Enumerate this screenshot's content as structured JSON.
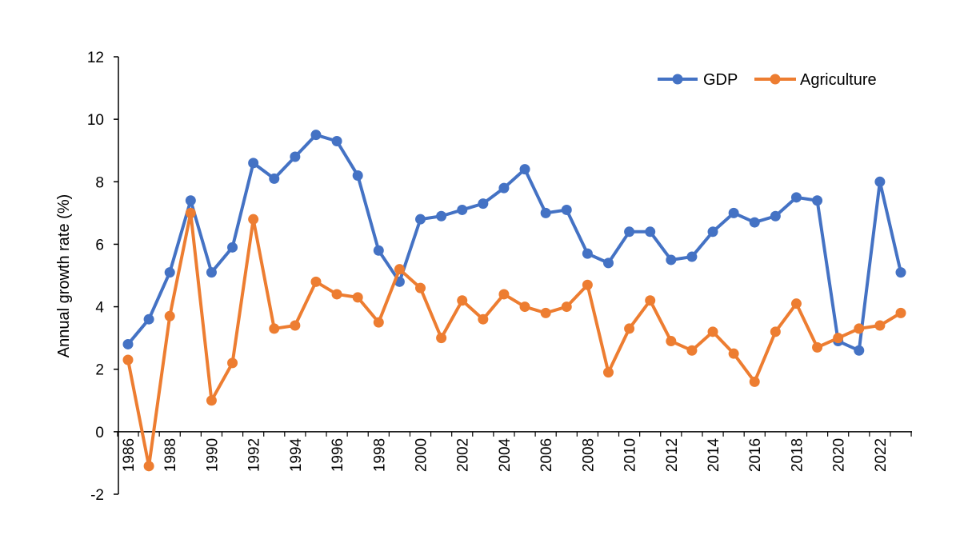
{
  "chart_data": {
    "type": "line",
    "title": "",
    "xlabel": "",
    "ylabel": "Annual growth rate (%)",
    "ylim": [
      -2,
      12
    ],
    "yticks": [
      -2,
      0,
      2,
      4,
      6,
      8,
      10,
      12
    ],
    "x": [
      1986,
      1987,
      1988,
      1989,
      1990,
      1991,
      1992,
      1993,
      1994,
      1995,
      1996,
      1997,
      1998,
      1999,
      2000,
      2001,
      2002,
      2003,
      2004,
      2005,
      2006,
      2007,
      2008,
      2009,
      2010,
      2011,
      2012,
      2013,
      2014,
      2015,
      2016,
      2017,
      2018,
      2019,
      2020,
      2021,
      2022,
      2023
    ],
    "xtick_labels": [
      1986,
      1988,
      1990,
      1992,
      1994,
      1996,
      1998,
      2000,
      2002,
      2004,
      2006,
      2008,
      2010,
      2012,
      2014,
      2016,
      2018,
      2020,
      2022
    ],
    "grid": false,
    "legend_position": "top-right",
    "series": [
      {
        "name": "GDP",
        "color": "#4472C4",
        "values": [
          2.8,
          3.6,
          5.1,
          7.4,
          5.1,
          5.9,
          8.6,
          8.1,
          8.8,
          9.5,
          9.3,
          8.2,
          5.8,
          4.8,
          6.8,
          6.9,
          7.1,
          7.3,
          7.8,
          8.4,
          7.0,
          7.1,
          5.7,
          5.4,
          6.4,
          6.4,
          5.5,
          5.6,
          6.4,
          7.0,
          6.7,
          6.9,
          7.5,
          7.4,
          2.9,
          2.6,
          8.0,
          5.1
        ]
      },
      {
        "name": "Agriculture",
        "color": "#ED7D31",
        "values": [
          2.3,
          -1.1,
          3.7,
          7.0,
          1.0,
          2.2,
          6.8,
          3.3,
          3.4,
          4.8,
          4.4,
          4.3,
          3.5,
          5.2,
          4.6,
          3.0,
          4.2,
          3.6,
          4.4,
          4.0,
          3.8,
          4.0,
          4.7,
          1.9,
          3.3,
          4.2,
          2.9,
          2.6,
          3.2,
          2.5,
          1.6,
          3.2,
          4.1,
          2.7,
          3.0,
          3.3,
          3.4,
          3.8
        ]
      }
    ]
  }
}
